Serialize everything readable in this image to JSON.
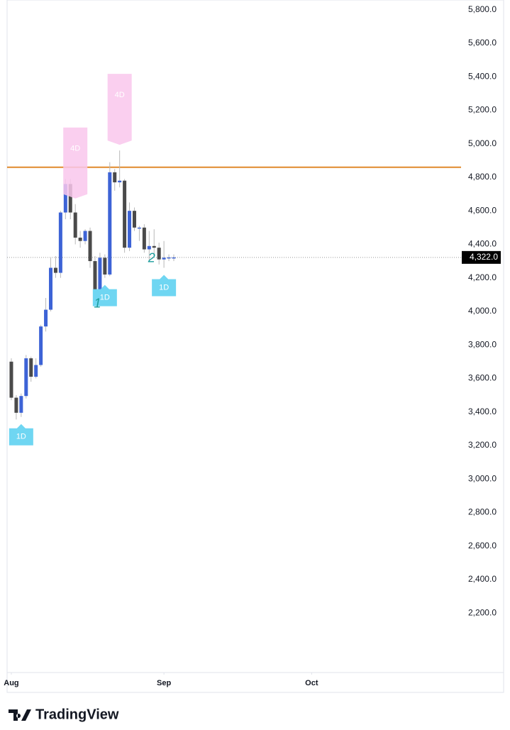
{
  "chart_data": {
    "type": "candlestick",
    "x": [
      0,
      1,
      2,
      3,
      4,
      5,
      6,
      7,
      8,
      9,
      10,
      11,
      12,
      13,
      14,
      15,
      16,
      17,
      18,
      19,
      20,
      21,
      22,
      23,
      24,
      25,
      26,
      27,
      28,
      29,
      30,
      31,
      32,
      33
    ],
    "open": [
      3700,
      3485,
      3395,
      3495,
      3720,
      3610,
      3680,
      3910,
      4010,
      4260,
      4230,
      4590,
      4760,
      4590,
      4440,
      4420,
      4480,
      4300,
      4080,
      4320,
      4220,
      4830,
      4770,
      4780,
      4380,
      4600,
      4500,
      4500,
      4370,
      4390,
      4380,
      4310,
      4320,
      4322
    ],
    "high": [
      3720,
      3500,
      3510,
      3740,
      3730,
      3720,
      3920,
      4080,
      4320,
      4330,
      4600,
      4790,
      4790,
      4640,
      4480,
      4490,
      4500,
      4330,
      4350,
      4340,
      4890,
      4850,
      4960,
      4790,
      4650,
      4620,
      4510,
      4520,
      4480,
      4490,
      4410,
      4420,
      4340,
      4340
    ],
    "low": [
      3470,
      3355,
      3370,
      3480,
      3580,
      3600,
      3670,
      3880,
      4000,
      4200,
      4200,
      4550,
      4550,
      4400,
      4380,
      4400,
      4260,
      4060,
      4060,
      4200,
      4210,
      4720,
      4740,
      4350,
      4360,
      4480,
      4420,
      4350,
      4300,
      4330,
      4280,
      4260,
      4300,
      4300
    ],
    "close": [
      3485,
      3395,
      3495,
      3720,
      3610,
      3680,
      3910,
      4010,
      4260,
      4230,
      4590,
      4760,
      4590,
      4440,
      4420,
      4480,
      4300,
      4080,
      4320,
      4220,
      4830,
      4770,
      4780,
      4380,
      4600,
      4500,
      4500,
      4370,
      4390,
      4380,
      4310,
      4320,
      4322,
      4322
    ],
    "up_color": "#3d63d6",
    "down_color": "#4a4a4a",
    "xlim": [
      -0.86,
      91.35
    ],
    "xticks": [
      {
        "value": 0,
        "label": "Aug"
      },
      {
        "value": 31,
        "label": "Sep"
      },
      {
        "value": 61,
        "label": "Oct"
      }
    ],
    "ylim": [
      1845,
      5858
    ],
    "yticks": [
      {
        "value": 5800,
        "label": "5,800.0"
      },
      {
        "value": 5600,
        "label": "5,600.0"
      },
      {
        "value": 5400,
        "label": "5,400.0"
      },
      {
        "value": 5200,
        "label": "5,200.0"
      },
      {
        "value": 5000,
        "label": "5,000.0"
      },
      {
        "value": 4800,
        "label": "4,800.0"
      },
      {
        "value": 4600,
        "label": "4,600.0"
      },
      {
        "value": 4400,
        "label": "4,400.0"
      },
      {
        "value": 4200,
        "label": "4,200.0"
      },
      {
        "value": 4000,
        "label": "4,000.0"
      },
      {
        "value": 3800,
        "label": "3,800.0"
      },
      {
        "value": 3600,
        "label": "3,600.0"
      },
      {
        "value": 3400,
        "label": "3,400.0"
      },
      {
        "value": 3200,
        "label": "3,200.0"
      },
      {
        "value": 3000,
        "label": "3,000.0"
      },
      {
        "value": 2800,
        "label": "2,800.0"
      },
      {
        "value": 2600,
        "label": "2,600.0"
      },
      {
        "value": 2400,
        "label": "2,400.0"
      },
      {
        "value": 2200,
        "label": "2,200.0"
      }
    ],
    "last_price": {
      "value": 4322,
      "label": "4,322.0"
    },
    "horizontal_line": {
      "value": 4860,
      "color": "#e08a2c"
    },
    "low_markers": [
      {
        "x": 2,
        "label": "1D"
      },
      {
        "x": 19,
        "label": "1D"
      },
      {
        "x": 31,
        "label": "1D"
      }
    ],
    "high_markers": [
      {
        "x": 13,
        "label": "4D"
      },
      {
        "x": 22,
        "label": "4D"
      }
    ],
    "annotations": [
      {
        "x": 17.5,
        "text": "1"
      },
      {
        "x": 28.5,
        "text": "2"
      }
    ],
    "brand": "TradingView"
  }
}
